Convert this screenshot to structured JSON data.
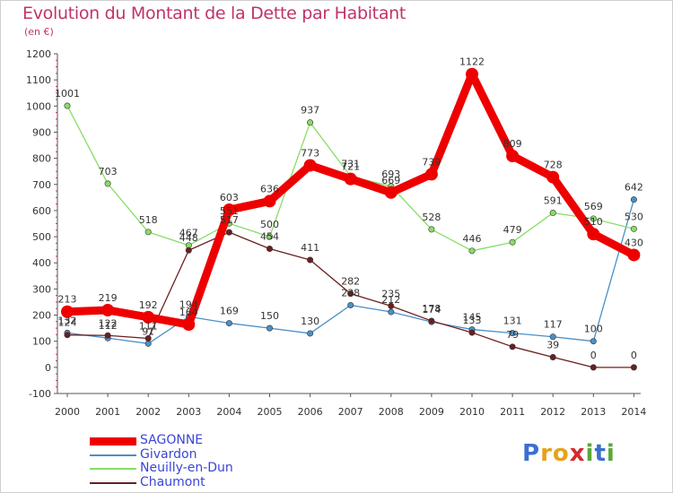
{
  "title": "Evolution du Montant de la Dette par Habitant",
  "subtitle": "(en €)",
  "brand": {
    "letters": [
      "P",
      "r",
      "o",
      "x",
      "i",
      "t",
      "i"
    ],
    "colors": [
      "#3b6fd1",
      "#e5a21a",
      "#e5a21a",
      "#d42a2a",
      "#5aa83a",
      "#3b6fd1",
      "#5aa83a"
    ]
  },
  "chart_data": {
    "type": "line",
    "title": "Evolution du Montant de la Dette par Habitant",
    "subtitle": "(en €)",
    "x": [
      "2000",
      "2001",
      "2002",
      "2003",
      "2004",
      "2005",
      "2006",
      "2007",
      "2008",
      "2009",
      "2010",
      "2011",
      "2012",
      "2013",
      "2014"
    ],
    "yticks": [
      "1200",
      "1100",
      "1000",
      "900",
      "800",
      "700",
      "600",
      "500",
      "400",
      "300",
      "200",
      "100",
      "0",
      "-100"
    ],
    "ylim": [
      -100,
      1200
    ],
    "grid": false,
    "legend_position": "bottom-left",
    "series": [
      {
        "name": "SAGONNE",
        "color": "#ee0000",
        "values": [
          213,
          219,
          192,
          164,
          603,
          636,
          773,
          721,
          669,
          739,
          1122,
          809,
          728,
          510,
          430
        ],
        "labels": [
          "213",
          "219",
          "192",
          "164",
          "603",
          "636",
          "773",
          "721",
          "669",
          "739",
          "1122",
          "809",
          "728",
          "510",
          "430"
        ]
      },
      {
        "name": "Givardon",
        "color": "#4a90c8",
        "values": [
          132,
          112,
          91,
          194,
          169,
          150,
          130,
          238,
          212,
          174,
          145,
          131,
          117,
          100,
          642
        ],
        "labels": [
          "132",
          "112",
          "91",
          "194",
          "169",
          "150",
          "130",
          "238",
          "212",
          "174",
          "145",
          "131",
          "117",
          "100",
          "642"
        ]
      },
      {
        "name": "Neuilly-en-Dun",
        "color": "#88dd66",
        "values": [
          1001,
          703,
          518,
          467,
          551,
          500,
          937,
          731,
          693,
          528,
          446,
          479,
          591,
          569,
          530
        ],
        "labels": [
          "1001",
          "703",
          "518",
          "467",
          "551",
          "500",
          "937",
          "731",
          "693",
          "528",
          "446",
          "479",
          "591",
          "569",
          "530"
        ]
      },
      {
        "name": "Chaumont",
        "color": "#6b1f1f",
        "values": [
          124,
          122,
          111,
          448,
          517,
          454,
          411,
          282,
          235,
          178,
          133,
          79,
          39,
          0,
          0
        ],
        "labels": [
          "124",
          "122",
          "111",
          "448",
          "517",
          "454",
          "411",
          "282",
          "235",
          "178",
          "133",
          "79",
          "39",
          "0",
          "0"
        ]
      }
    ]
  }
}
